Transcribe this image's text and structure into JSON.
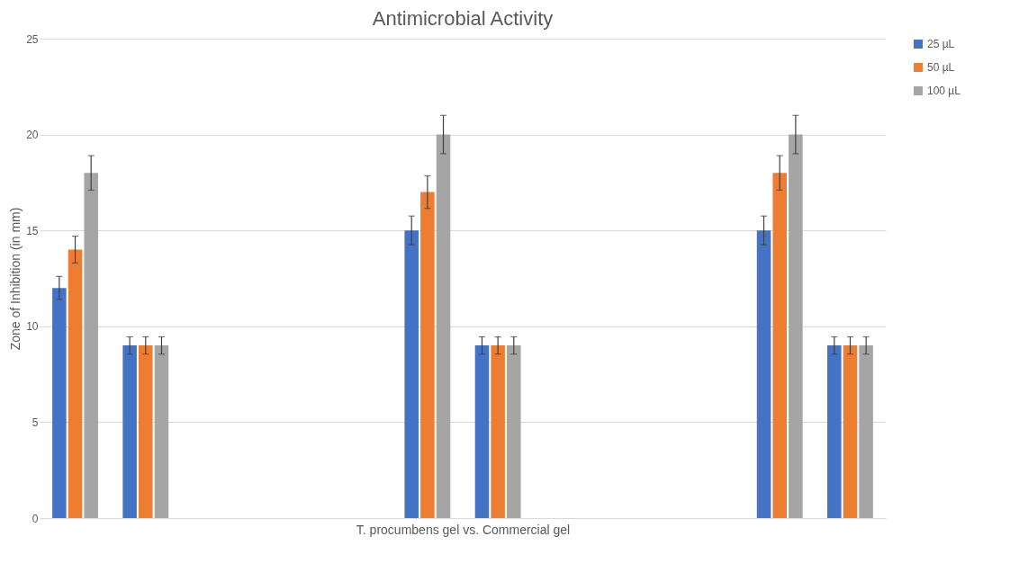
{
  "chart_data": {
    "type": "bar",
    "title": "Antimicrobial Activity",
    "xlabel": "T. procumbens gel vs. Commercial gel",
    "ylabel": "Zone of Inhibition (in mm)",
    "categories": [
      null,
      null,
      null,
      null,
      null,
      null,
      null,
      null,
      null,
      null,
      null,
      null
    ],
    "series": [
      {
        "name": "25 µL",
        "color": "#4472c4",
        "values": [
          12,
          9,
          null,
          null,
          null,
          15,
          9,
          null,
          null,
          null,
          15,
          9
        ],
        "errors": [
          0.6,
          0.45,
          null,
          null,
          null,
          0.75,
          0.45,
          null,
          null,
          null,
          0.75,
          0.45
        ]
      },
      {
        "name": "50 µL",
        "color": "#ed7d31",
        "values": [
          14,
          9,
          null,
          null,
          null,
          17,
          9,
          null,
          null,
          null,
          18,
          9
        ],
        "errors": [
          0.7,
          0.45,
          null,
          null,
          null,
          0.85,
          0.45,
          null,
          null,
          null,
          0.9,
          0.45
        ]
      },
      {
        "name": "100 µL",
        "color": "#a5a5a5",
        "values": [
          18,
          9,
          null,
          null,
          null,
          20,
          9,
          null,
          null,
          null,
          20,
          9
        ],
        "errors": [
          0.9,
          0.45,
          null,
          null,
          null,
          1,
          0.45,
          null,
          null,
          null,
          1,
          0.45
        ]
      }
    ],
    "ylim": [
      0,
      25
    ],
    "yticks": [
      0,
      5,
      10,
      15,
      20,
      25
    ],
    "grid": "y",
    "legend": "right"
  }
}
